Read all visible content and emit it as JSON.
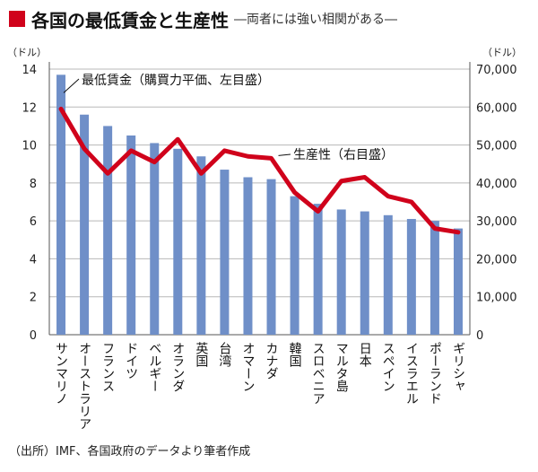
{
  "header": {
    "title": "各国の最低賃金と生産性",
    "subtitle": "―両者には強い相関がある―",
    "accent_color": "#d0021b"
  },
  "source": "（出所）IMF、各国政府のデータより筆者作成",
  "chart_data": {
    "type": "bar+line",
    "categories": [
      "サンマリノ",
      "オーストラリア",
      "フランス",
      "ドイツ",
      "ベルギー",
      "オランダ",
      "英国",
      "台湾",
      "オマーン",
      "カナダ",
      "韓国",
      "スロベニア",
      "マルタ島",
      "日本",
      "スペイン",
      "イスラエル",
      "ポーランド",
      "ギリシャ"
    ],
    "series": [
      {
        "name": "最低賃金（購買力平価、左目盛）",
        "type": "bar",
        "axis": "left",
        "color": "#6f8fc8",
        "values": [
          13.7,
          11.6,
          11.0,
          10.5,
          10.1,
          9.8,
          9.4,
          8.7,
          8.3,
          8.2,
          7.3,
          6.9,
          6.6,
          6.5,
          6.3,
          6.1,
          6.0,
          5.6
        ]
      },
      {
        "name": "生産性（右目盛）",
        "type": "line",
        "axis": "right",
        "color": "#d0021b",
        "values": [
          59500,
          49000,
          42500,
          48500,
          45500,
          51500,
          42500,
          48500,
          47000,
          46500,
          37500,
          32500,
          40500,
          41500,
          36500,
          35000,
          28000,
          27000
        ]
      }
    ],
    "y_left": {
      "unit": "（ドル）",
      "ylim": [
        0,
        14
      ],
      "ticks": [
        "0",
        "2",
        "4",
        "6",
        "8",
        "10",
        "12",
        "14"
      ]
    },
    "y_right": {
      "unit": "（ドル）",
      "ylim": [
        0,
        70000
      ],
      "ticks": [
        "0",
        "10,000",
        "20,000",
        "30,000",
        "40,000",
        "50,000",
        "60,000",
        "70,000"
      ]
    },
    "annotations": [
      {
        "text": "最低賃金（購買力平価、左目盛）",
        "points_to": "bar",
        "index": 0
      },
      {
        "text": "生産性（右目盛）",
        "points_to": "line",
        "index": 9
      }
    ]
  }
}
